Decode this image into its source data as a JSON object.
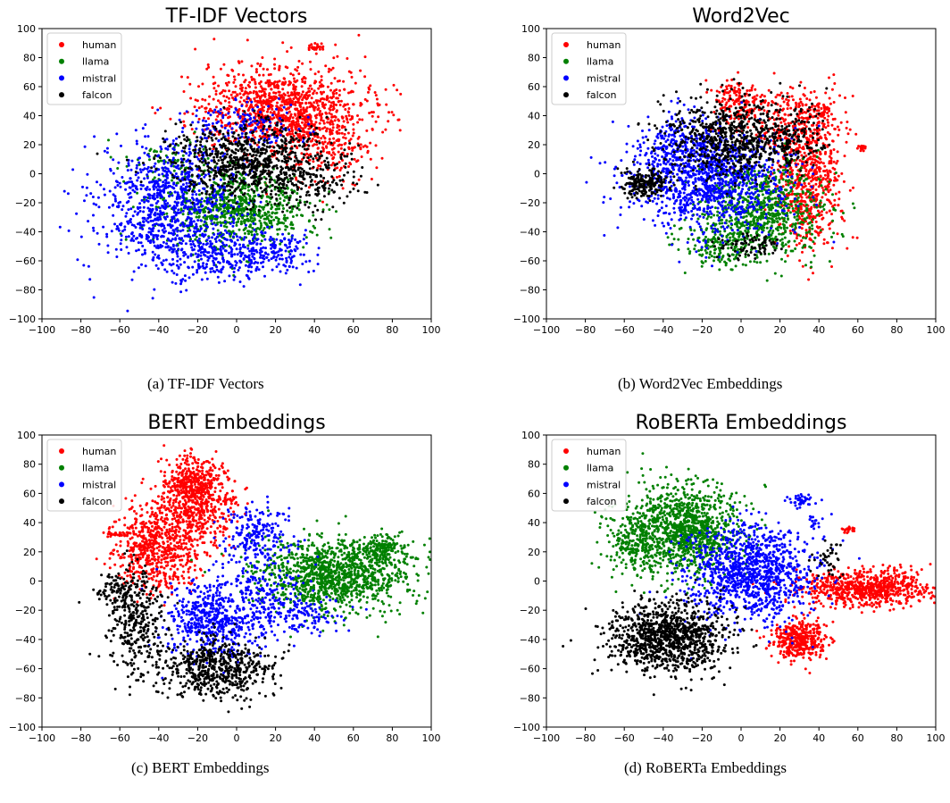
{
  "colors": {
    "human": "#ff0000",
    "llama": "#008000",
    "mistral": "#0000ff",
    "falcon": "#000000"
  },
  "chart_data": [
    {
      "type": "scatter",
      "title": "TF-IDF Vectors",
      "caption": "(a) TF-IDF Vectors",
      "xlim": [
        -100,
        100
      ],
      "ylim": [
        -100,
        100
      ],
      "xticks": [
        -100,
        -80,
        -60,
        -40,
        -20,
        0,
        20,
        40,
        60,
        80,
        100
      ],
      "yticks": [
        -100,
        -80,
        -60,
        -40,
        -20,
        0,
        20,
        40,
        60,
        80,
        100
      ],
      "legend": [
        "human",
        "llama",
        "mistral",
        "falcon"
      ],
      "legend_position": "top-left",
      "grid": false,
      "series": [
        {
          "name": "human",
          "clusters": [
            {
              "cx": 25,
              "cy": 45,
              "sx": 22,
              "sy": 15,
              "n": 1100
            },
            {
              "cx": 45,
              "cy": 20,
              "sx": 12,
              "sy": 15,
              "n": 200
            },
            {
              "cx": 40,
              "cy": 87,
              "sx": 2,
              "sy": 1.5,
              "n": 25
            }
          ]
        },
        {
          "name": "llama",
          "clusters": [
            {
              "cx": 0,
              "cy": -25,
              "sx": 18,
              "sy": 13,
              "n": 750
            },
            {
              "cx": -35,
              "cy": 5,
              "sx": 12,
              "sy": 10,
              "n": 80
            }
          ]
        },
        {
          "name": "mistral",
          "clusters": [
            {
              "cx": -35,
              "cy": -20,
              "sx": 18,
              "sy": 22,
              "n": 900
            },
            {
              "cx": -10,
              "cy": -55,
              "sx": 18,
              "sy": 9,
              "n": 300
            },
            {
              "cx": 5,
              "cy": 35,
              "sx": 15,
              "sy": 10,
              "n": 150
            },
            {
              "cx": 20,
              "cy": -55,
              "sx": 10,
              "sy": 8,
              "n": 120
            }
          ]
        },
        {
          "name": "falcon",
          "clusters": [
            {
              "cx": 5,
              "cy": 10,
              "sx": 20,
              "sy": 13,
              "n": 750
            },
            {
              "cx": 35,
              "cy": -5,
              "sx": 15,
              "sy": 10,
              "n": 200
            }
          ]
        }
      ]
    },
    {
      "type": "scatter",
      "title": "Word2Vec",
      "caption": "(b) Word2Vec Embeddings",
      "xlim": [
        -100,
        100
      ],
      "ylim": [
        -100,
        100
      ],
      "xticks": [
        -100,
        -80,
        -60,
        -40,
        -20,
        0,
        20,
        40,
        60,
        80,
        100
      ],
      "yticks": [
        -100,
        -80,
        -60,
        -40,
        -20,
        0,
        20,
        40,
        60,
        80,
        100
      ],
      "legend": [
        "human",
        "llama",
        "mistral",
        "falcon"
      ],
      "legend_position": "top-left",
      "grid": false,
      "series": [
        {
          "name": "human",
          "clusters": [
            {
              "cx": 35,
              "cy": -10,
              "sx": 9,
              "sy": 22,
              "n": 550
            },
            {
              "cx": 28,
              "cy": 35,
              "sx": 12,
              "sy": 12,
              "n": 300
            },
            {
              "cx": -2,
              "cy": 50,
              "sx": 6,
              "sy": 8,
              "n": 150
            },
            {
              "cx": 62,
              "cy": 18,
              "sx": 1,
              "sy": 1,
              "n": 20
            },
            {
              "cx": 42,
              "cy": 45,
              "sx": 3,
              "sy": 3,
              "n": 30
            }
          ]
        },
        {
          "name": "llama",
          "clusters": [
            {
              "cx": 10,
              "cy": -25,
              "sx": 16,
              "sy": 17,
              "n": 800
            },
            {
              "cx": -10,
              "cy": -50,
              "sx": 10,
              "sy": 7,
              "n": 150
            }
          ]
        },
        {
          "name": "mistral",
          "clusters": [
            {
              "cx": -15,
              "cy": -5,
              "sx": 20,
              "sy": 18,
              "n": 1100
            },
            {
              "cx": -30,
              "cy": 20,
              "sx": 10,
              "sy": 12,
              "n": 200
            }
          ]
        },
        {
          "name": "falcon",
          "clusters": [
            {
              "cx": -5,
              "cy": 25,
              "sx": 16,
              "sy": 14,
              "n": 700
            },
            {
              "cx": -50,
              "cy": -7,
              "sx": 6,
              "sy": 5,
              "n": 200
            },
            {
              "cx": 25,
              "cy": 25,
              "sx": 8,
              "sy": 10,
              "n": 120
            },
            {
              "cx": 5,
              "cy": -50,
              "sx": 8,
              "sy": 4,
              "n": 80
            }
          ]
        }
      ]
    },
    {
      "type": "scatter",
      "title": "BERT Embeddings",
      "caption": "(c) BERT Embeddings",
      "xlim": [
        -100,
        100
      ],
      "ylim": [
        -100,
        100
      ],
      "xticks": [
        -100,
        -80,
        -60,
        -40,
        -20,
        0,
        20,
        40,
        60,
        80,
        100
      ],
      "yticks": [
        -100,
        -80,
        -60,
        -40,
        -20,
        0,
        20,
        40,
        60,
        80,
        100
      ],
      "legend": [
        "human",
        "llama",
        "mistral",
        "falcon"
      ],
      "legend_position": "top-left",
      "grid": false,
      "series": [
        {
          "name": "human",
          "clusters": [
            {
              "cx": -22,
              "cy": 65,
              "sx": 8,
              "sy": 10,
              "n": 500
            },
            {
              "cx": -42,
              "cy": 25,
              "sx": 10,
              "sy": 15,
              "n": 650
            },
            {
              "cx": -20,
              "cy": 40,
              "sx": 8,
              "sy": 10,
              "n": 200
            },
            {
              "cx": -62,
              "cy": 32,
              "sx": 3,
              "sy": 1,
              "n": 30
            },
            {
              "cx": -5,
              "cy": 55,
              "sx": 4,
              "sy": 2,
              "n": 30
            }
          ]
        },
        {
          "name": "llama",
          "clusters": [
            {
              "cx": 50,
              "cy": 5,
              "sx": 20,
              "sy": 12,
              "n": 1200
            },
            {
              "cx": 75,
              "cy": 22,
              "sx": 6,
              "sy": 5,
              "n": 150
            }
          ]
        },
        {
          "name": "mistral",
          "clusters": [
            {
              "cx": -12,
              "cy": -25,
              "sx": 12,
              "sy": 14,
              "n": 550
            },
            {
              "cx": 10,
              "cy": 30,
              "sx": 8,
              "sy": 10,
              "n": 200
            },
            {
              "cx": 15,
              "cy": -10,
              "sx": 10,
              "sy": 15,
              "n": 200
            },
            {
              "cx": 35,
              "cy": -25,
              "sx": 10,
              "sy": 6,
              "n": 100
            }
          ]
        },
        {
          "name": "falcon",
          "clusters": [
            {
              "cx": -10,
              "cy": -60,
              "sx": 15,
              "sy": 10,
              "n": 600
            },
            {
              "cx": -52,
              "cy": -25,
              "sx": 8,
              "sy": 18,
              "n": 350
            },
            {
              "cx": -62,
              "cy": -5,
              "sx": 4,
              "sy": 5,
              "n": 60
            }
          ]
        }
      ]
    },
    {
      "type": "scatter",
      "title": "RoBERTa Embeddings",
      "caption": "(d) RoBERTa Embeddings",
      "xlim": [
        -100,
        100
      ],
      "ylim": [
        -100,
        100
      ],
      "xticks": [
        -100,
        -80,
        -60,
        -40,
        -20,
        0,
        20,
        40,
        60,
        80,
        100
      ],
      "yticks": [
        -100,
        -80,
        -60,
        -40,
        -20,
        0,
        20,
        40,
        60,
        80,
        100
      ],
      "legend": [
        "human",
        "llama",
        "mistral",
        "falcon"
      ],
      "legend_position": "top-left",
      "grid": false,
      "series": [
        {
          "name": "human",
          "clusters": [
            {
              "cx": 65,
              "cy": -5,
              "sx": 18,
              "sy": 6,
              "n": 750
            },
            {
              "cx": 30,
              "cy": -40,
              "sx": 7,
              "sy": 7,
              "n": 400
            },
            {
              "cx": 55,
              "cy": 35,
              "sx": 2,
              "sy": 1,
              "n": 20
            }
          ]
        },
        {
          "name": "llama",
          "clusters": [
            {
              "cx": -30,
              "cy": 35,
              "sx": 15,
              "sy": 15,
              "n": 1200
            },
            {
              "cx": -55,
              "cy": 25,
              "sx": 6,
              "sy": 8,
              "n": 150
            }
          ]
        },
        {
          "name": "mistral",
          "clusters": [
            {
              "cx": 5,
              "cy": 5,
              "sx": 16,
              "sy": 16,
              "n": 1100
            },
            {
              "cx": 32,
              "cy": 55,
              "sx": 4,
              "sy": 2,
              "n": 40
            },
            {
              "cx": 38,
              "cy": 40,
              "sx": 2,
              "sy": 2,
              "n": 15
            }
          ]
        },
        {
          "name": "falcon",
          "clusters": [
            {
              "cx": -38,
              "cy": -38,
              "sx": 15,
              "sy": 12,
              "n": 1100
            },
            {
              "cx": 45,
              "cy": 15,
              "sx": 4,
              "sy": 8,
              "n": 40
            }
          ]
        }
      ]
    }
  ]
}
